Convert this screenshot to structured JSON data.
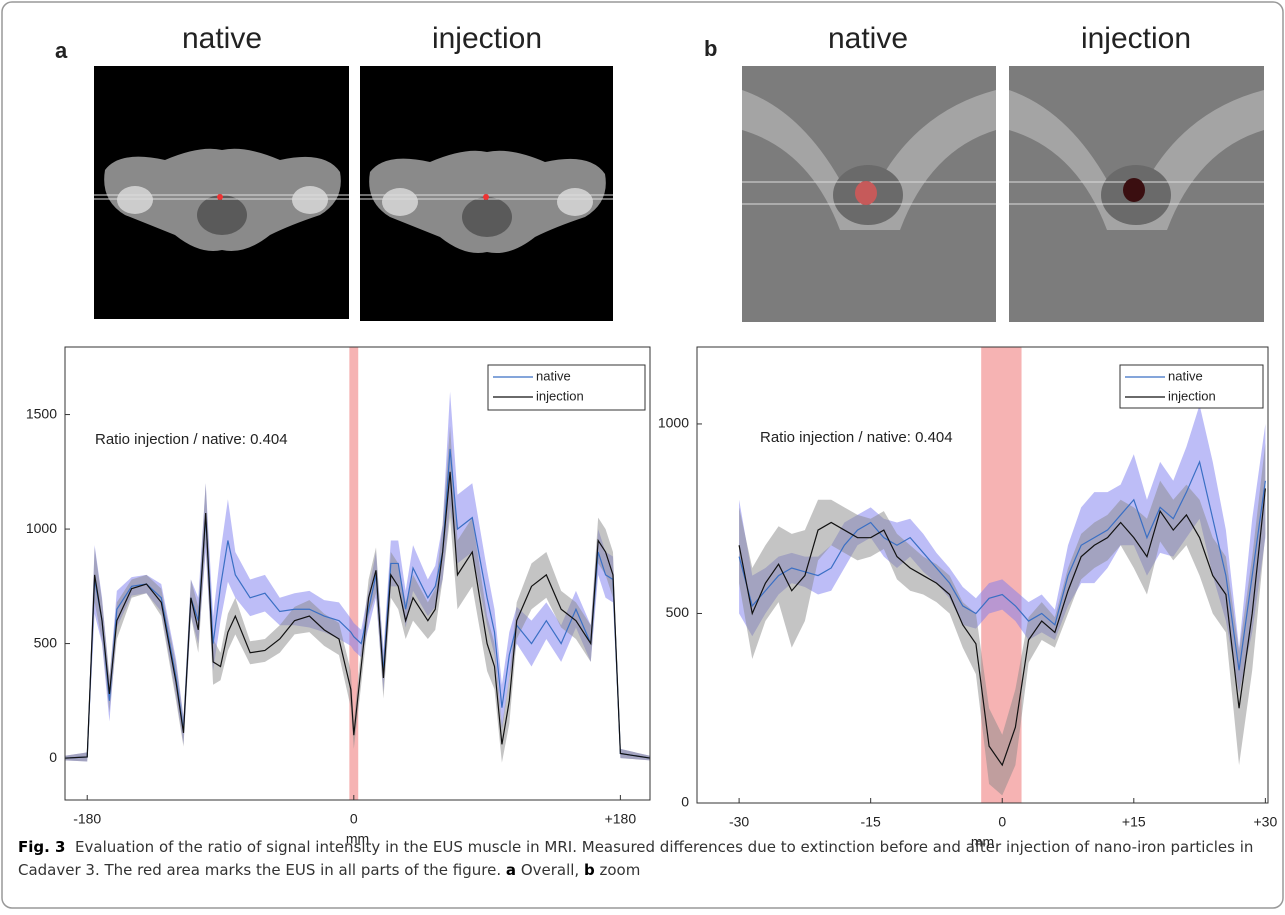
{
  "panels": [
    {
      "label": "a",
      "image_titles": [
        "native",
        "injection"
      ]
    },
    {
      "label": "b",
      "image_titles": [
        "native",
        "injection"
      ]
    }
  ],
  "chart_data": [
    {
      "type": "line",
      "xlabel": "mm",
      "annotation": "Ratio injection / native: 0.404",
      "xlim": [
        -195,
        200
      ],
      "ylim": [
        -183,
        1795
      ],
      "xticks": [
        -180,
        0,
        {
          "value": 180,
          "label": "+180"
        }
      ],
      "yticks": [
        0,
        500,
        1000,
        1500
      ],
      "highlight_range": [
        -3,
        3
      ],
      "highlight_color": "#f4a0a0",
      "legend": "upper right",
      "x": [
        -195,
        -180,
        -175,
        -170,
        -165,
        -160,
        -150,
        -140,
        -130,
        -120,
        -115,
        -110,
        -105,
        -100,
        -95,
        -90,
        -85,
        -80,
        -70,
        -60,
        -50,
        -40,
        -30,
        -20,
        -10,
        -2,
        0,
        5,
        10,
        15,
        20,
        25,
        30,
        35,
        40,
        50,
        55,
        60,
        65,
        70,
        80,
        90,
        95,
        100,
        105,
        110,
        120,
        130,
        140,
        150,
        160,
        165,
        170,
        175,
        180,
        200
      ],
      "series": [
        {
          "name": "native",
          "color": "#3a6fc4",
          "band_color": "#7b7bf0",
          "values": [
            0,
            5,
            780,
            600,
            250,
            650,
            750,
            760,
            700,
            350,
            120,
            700,
            600,
            1050,
            500,
            750,
            950,
            800,
            700,
            720,
            640,
            650,
            650,
            620,
            600,
            550,
            530,
            500,
            650,
            800,
            380,
            850,
            850,
            650,
            830,
            700,
            750,
            900,
            1350,
            1000,
            1050,
            700,
            550,
            220,
            450,
            580,
            500,
            600,
            500,
            650,
            500,
            900,
            800,
            780,
            20,
            0
          ],
          "errors": [
            10,
            20,
            150,
            100,
            90,
            80,
            40,
            40,
            60,
            80,
            60,
            80,
            100,
            150,
            120,
            150,
            180,
            100,
            80,
            80,
            60,
            70,
            80,
            70,
            80,
            60,
            60,
            60,
            80,
            100,
            90,
            100,
            100,
            80,
            100,
            80,
            90,
            120,
            250,
            150,
            150,
            120,
            100,
            100,
            100,
            80,
            100,
            80,
            80,
            80,
            80,
            100,
            100,
            100,
            20,
            10
          ]
        },
        {
          "name": "injection",
          "color": "#111111",
          "band_color": "#8a8a8a",
          "values": [
            0,
            5,
            800,
            600,
            280,
            600,
            740,
            760,
            680,
            330,
            110,
            700,
            560,
            1070,
            420,
            400,
            550,
            620,
            460,
            470,
            520,
            600,
            620,
            560,
            520,
            300,
            100,
            400,
            700,
            820,
            350,
            800,
            750,
            600,
            700,
            600,
            650,
            900,
            1250,
            800,
            900,
            500,
            400,
            60,
            250,
            600,
            750,
            800,
            650,
            600,
            500,
            950,
            900,
            800,
            20,
            0
          ],
          "errors": [
            10,
            20,
            120,
            90,
            80,
            80,
            40,
            40,
            60,
            80,
            60,
            80,
            100,
            130,
            100,
            60,
            80,
            80,
            50,
            50,
            60,
            60,
            70,
            70,
            70,
            80,
            60,
            80,
            80,
            100,
            90,
            100,
            100,
            80,
            100,
            80,
            90,
            120,
            200,
            150,
            150,
            120,
            100,
            80,
            100,
            80,
            100,
            100,
            80,
            80,
            80,
            100,
            100,
            100,
            20,
            10
          ]
        }
      ]
    },
    {
      "type": "line",
      "xlabel": "mm",
      "annotation": "Ratio injection / native: 0.404",
      "xlim": [
        -34.8,
        30.3
      ],
      "ylim": [
        0,
        1203
      ],
      "xticks": [
        -30,
        -15,
        0,
        {
          "value": 15,
          "label": "+15"
        },
        {
          "value": 30,
          "label": "+30"
        }
      ],
      "yticks": [
        0,
        500,
        1000
      ],
      "highlight_range": [
        -2.4,
        2.2
      ],
      "highlight_color": "#f4a0a0",
      "legend": "upper right",
      "x": [
        -30,
        -28.5,
        -27,
        -25.5,
        -24,
        -22.5,
        -21,
        -19.5,
        -18,
        -16.5,
        -15,
        -13.5,
        -12,
        -10.5,
        -9,
        -7.5,
        -6,
        -4.5,
        -3,
        -1.5,
        0,
        1.5,
        3,
        4.5,
        6,
        7.5,
        9,
        10.5,
        12,
        13.5,
        15,
        16.5,
        18,
        19.5,
        21,
        22.5,
        24,
        25.5,
        27,
        28.5,
        30
      ],
      "series": [
        {
          "name": "native",
          "color": "#3a6fc4",
          "band_color": "#7b7bf0",
          "values": [
            650,
            520,
            560,
            600,
            620,
            610,
            600,
            620,
            680,
            720,
            740,
            700,
            680,
            700,
            660,
            620,
            580,
            520,
            500,
            540,
            550,
            520,
            480,
            500,
            470,
            600,
            680,
            700,
            720,
            760,
            800,
            700,
            780,
            750,
            820,
            900,
            750,
            600,
            350,
            600,
            850
          ],
          "errors": [
            150,
            80,
            60,
            50,
            40,
            40,
            50,
            60,
            60,
            40,
            40,
            50,
            60,
            50,
            50,
            40,
            40,
            50,
            40,
            40,
            40,
            40,
            50,
            50,
            40,
            80,
            100,
            120,
            100,
            80,
            120,
            100,
            120,
            100,
            120,
            150,
            150,
            120,
            60,
            150,
            150
          ]
        },
        {
          "name": "injection",
          "color": "#111111",
          "band_color": "#8a8a8a",
          "values": [
            680,
            500,
            580,
            630,
            560,
            600,
            720,
            740,
            720,
            700,
            700,
            720,
            650,
            620,
            600,
            580,
            550,
            470,
            420,
            150,
            100,
            200,
            430,
            480,
            450,
            560,
            650,
            680,
            700,
            740,
            700,
            650,
            770,
            720,
            760,
            700,
            600,
            550,
            250,
            500,
            830
          ],
          "errors": [
            100,
            120,
            100,
            100,
            150,
            120,
            80,
            60,
            60,
            60,
            50,
            50,
            60,
            60,
            50,
            50,
            50,
            60,
            80,
            100,
            80,
            100,
            60,
            50,
            40,
            60,
            60,
            60,
            60,
            60,
            80,
            100,
            80,
            80,
            80,
            100,
            100,
            100,
            150,
            150,
            120
          ]
        }
      ]
    }
  ],
  "caption": {
    "label": "Fig. 3",
    "text": "Evaluation of the ratio of signal intensity in the EUS muscle in MRI. Measured differences due to extinction before and after injection of nano-iron particles in Cadaver 3. The red area marks the EUS in all parts of the figure.",
    "parts": [
      {
        "label": "a",
        "text": "Overall,"
      },
      {
        "label": "b",
        "text": "zoom"
      }
    ]
  }
}
